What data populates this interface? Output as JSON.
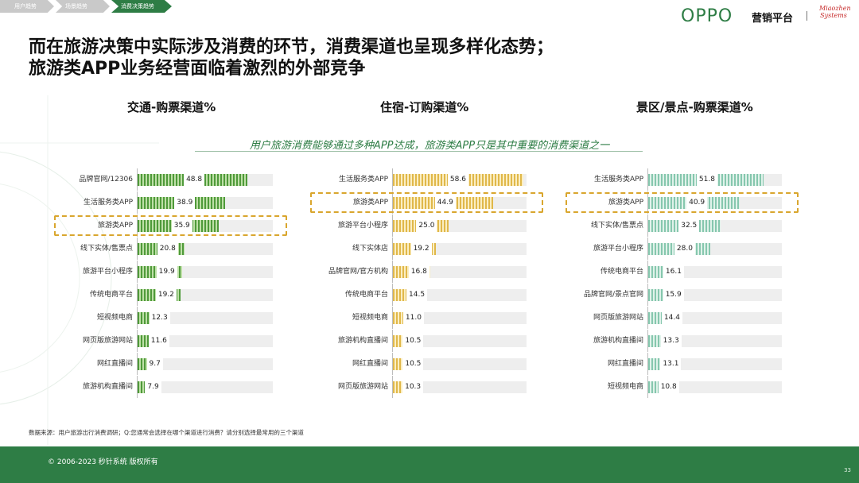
{
  "breadcrumbs": [
    "用户趋势",
    "场景趋势",
    "消费决策趋势"
  ],
  "logo": {
    "brand": "OPPO",
    "sub": "营销平台",
    "partner_line1": "Miaozhen",
    "partner_line2": "Systems"
  },
  "headline_line1": "而在旅游决策中实际涉及消费的环节，消费渠道也呈现多样化态势；",
  "headline_line2": "旅游类APP业务经营面临着激烈的外部竞争",
  "subtitle": "用户旅游消费能够通过多种APP达成，旅游类APP只是其中重要的消费渠道之一",
  "source": "数据来源：用户旅游出行消费调研；Q:您通常会选择在哪个渠道进行消费？请分别选择最常用的三个渠道",
  "footer_copyright": "© 2006-2023 秒针系统 版权所有",
  "page_number": "33",
  "colors": {
    "green": "#4f9a3a",
    "yellow": "#e0b84a",
    "teal": "#86c7ae",
    "highlight": "#d9a62e",
    "brand": "#2e7d45"
  },
  "chart_data": [
    {
      "type": "bar",
      "title": "交通-购票渠道%",
      "orientation": "horizontal",
      "xlim": [
        0,
        60
      ],
      "highlight": "旅游类APP",
      "categories": [
        "品牌官网/12306",
        "生活服务类APP",
        "旅游类APP",
        "线下实体/售票点",
        "旅游平台小程序",
        "传统电商平台",
        "短视频电商",
        "网页版旅游网站",
        "网红直播间",
        "旅游机构直播间"
      ],
      "values": [
        48.8,
        38.9,
        35.9,
        20.8,
        19.9,
        19.2,
        12.3,
        11.6,
        9.7,
        7.9
      ]
    },
    {
      "type": "bar",
      "title": "住宿-订购渠道%",
      "orientation": "horizontal",
      "xlim": [
        0,
        60
      ],
      "highlight": "旅游类APP",
      "categories": [
        "生活服务类APP",
        "旅游类APP",
        "旅游平台小程序",
        "线下实体店",
        "品牌官网/官方机构",
        "传统电商平台",
        "短视频电商",
        "旅游机构直播间",
        "网红直播间",
        "网页版旅游网站"
      ],
      "values": [
        58.6,
        44.9,
        25.0,
        19.2,
        16.8,
        14.5,
        11.0,
        10.5,
        10.5,
        10.3
      ]
    },
    {
      "type": "bar",
      "title": "景区/景点-购票渠道%",
      "orientation": "horizontal",
      "xlim": [
        0,
        60
      ],
      "highlight": "旅游类APP",
      "categories": [
        "生活服务类APP",
        "旅游类APP",
        "线下实体/售票点",
        "旅游平台小程序",
        "传统电商平台",
        "品牌官网/景点官网",
        "网页版旅游网站",
        "旅游机构直播间",
        "网红直播间",
        "短视频电商"
      ],
      "values": [
        51.8,
        40.9,
        32.5,
        28.0,
        16.1,
        15.9,
        14.4,
        13.3,
        13.1,
        10.8
      ]
    }
  ]
}
